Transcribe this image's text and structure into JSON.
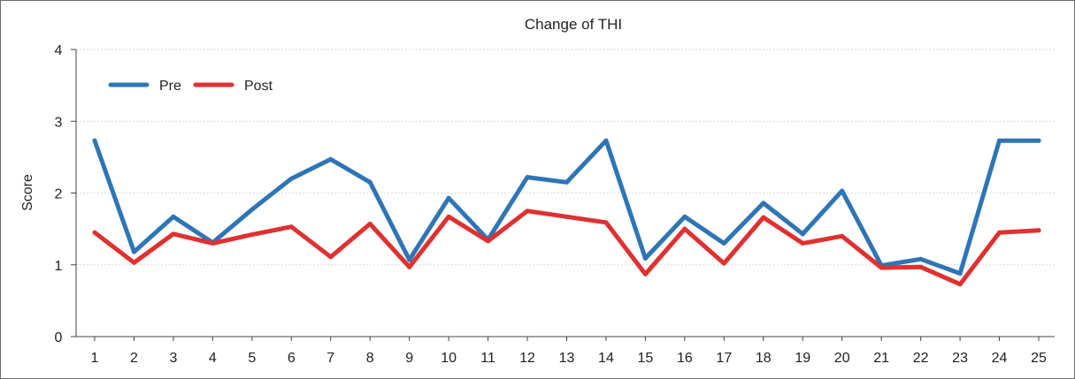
{
  "chart_data": {
    "type": "line",
    "title": "Change of THI",
    "xlabel": "",
    "ylabel": "Score",
    "x": [
      1,
      2,
      3,
      4,
      5,
      6,
      7,
      8,
      9,
      10,
      11,
      12,
      13,
      14,
      15,
      16,
      17,
      18,
      19,
      20,
      21,
      22,
      23,
      24,
      25
    ],
    "yticks": [
      0,
      1,
      2,
      3,
      4
    ],
    "ylim": [
      0,
      4
    ],
    "grid": true,
    "legend_position": "top-left",
    "series": [
      {
        "name": "Pre",
        "color": "#2e75b6",
        "values": [
          2.73,
          1.18,
          1.67,
          1.31,
          1.77,
          2.2,
          2.47,
          2.15,
          1.07,
          1.93,
          1.35,
          2.22,
          2.15,
          2.73,
          1.09,
          1.67,
          1.3,
          1.86,
          1.43,
          2.03,
          0.99,
          1.08,
          0.88,
          2.73,
          2.73
        ]
      },
      {
        "name": "Post",
        "color": "#e03030",
        "values": [
          1.45,
          1.03,
          1.43,
          1.3,
          1.42,
          1.53,
          1.11,
          1.57,
          0.97,
          1.67,
          1.33,
          1.75,
          1.67,
          1.59,
          0.87,
          1.5,
          1.02,
          1.66,
          1.3,
          1.4,
          0.96,
          0.97,
          0.73,
          1.45,
          1.48
        ]
      }
    ]
  }
}
